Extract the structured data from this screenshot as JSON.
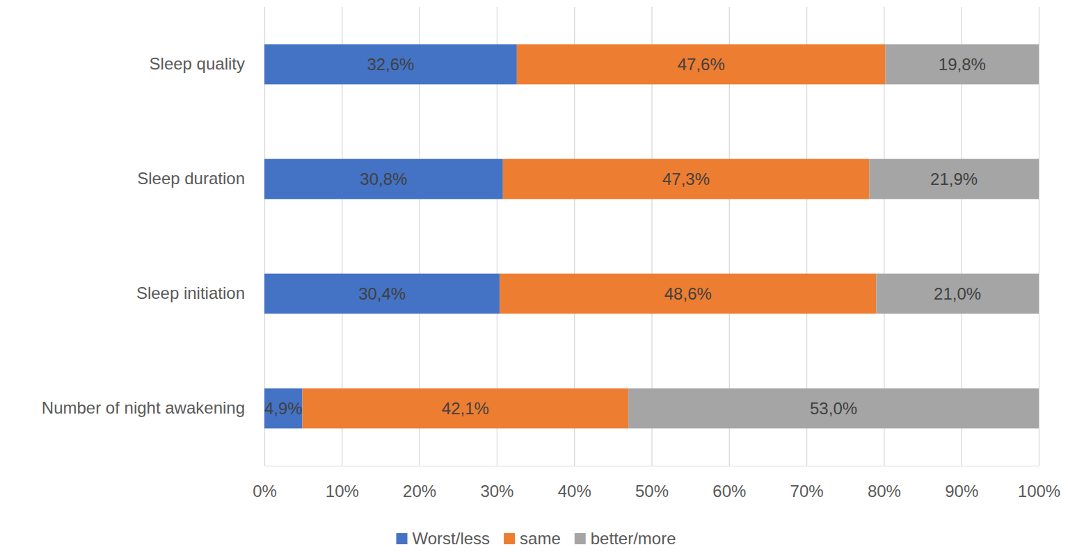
{
  "chart_data": {
    "type": "bar",
    "orientation": "horizontal",
    "stacked": true,
    "data_labels": true,
    "grid": true,
    "legend": "bottom",
    "categories": [
      "Sleep quality",
      "Sleep duration",
      "Sleep initiation",
      "Number of night awakening"
    ],
    "series": [
      {
        "name": "Worst/less",
        "color": "#4472c4",
        "values": [
          32.6,
          30.8,
          30.4,
          4.9
        ],
        "value_labels": [
          "32,6%",
          "30,8%",
          "30,4%",
          "4,9%"
        ]
      },
      {
        "name": "same",
        "color": "#ed7d31",
        "values": [
          47.6,
          47.3,
          48.6,
          42.1
        ],
        "value_labels": [
          "47,6%",
          "47,3%",
          "48,6%",
          "42,1%"
        ]
      },
      {
        "name": "better/more",
        "color": "#a5a5a5",
        "values": [
          19.8,
          21.9,
          21.0,
          53.0
        ],
        "value_labels": [
          "19,8%",
          "21,9%",
          "21,0%",
          "53,0%"
        ]
      }
    ],
    "xlim": [
      0,
      100
    ],
    "xticks": [
      {
        "value": 0,
        "label": "0%"
      },
      {
        "value": 10,
        "label": "10%"
      },
      {
        "value": 20,
        "label": "20%"
      },
      {
        "value": 30,
        "label": "30%"
      },
      {
        "value": 40,
        "label": "40%"
      },
      {
        "value": 50,
        "label": "50%"
      },
      {
        "value": 60,
        "label": "60%"
      },
      {
        "value": 70,
        "label": "70%"
      },
      {
        "value": 80,
        "label": "80%"
      },
      {
        "value": 90,
        "label": "90%"
      },
      {
        "value": 100,
        "label": "100%"
      }
    ]
  }
}
